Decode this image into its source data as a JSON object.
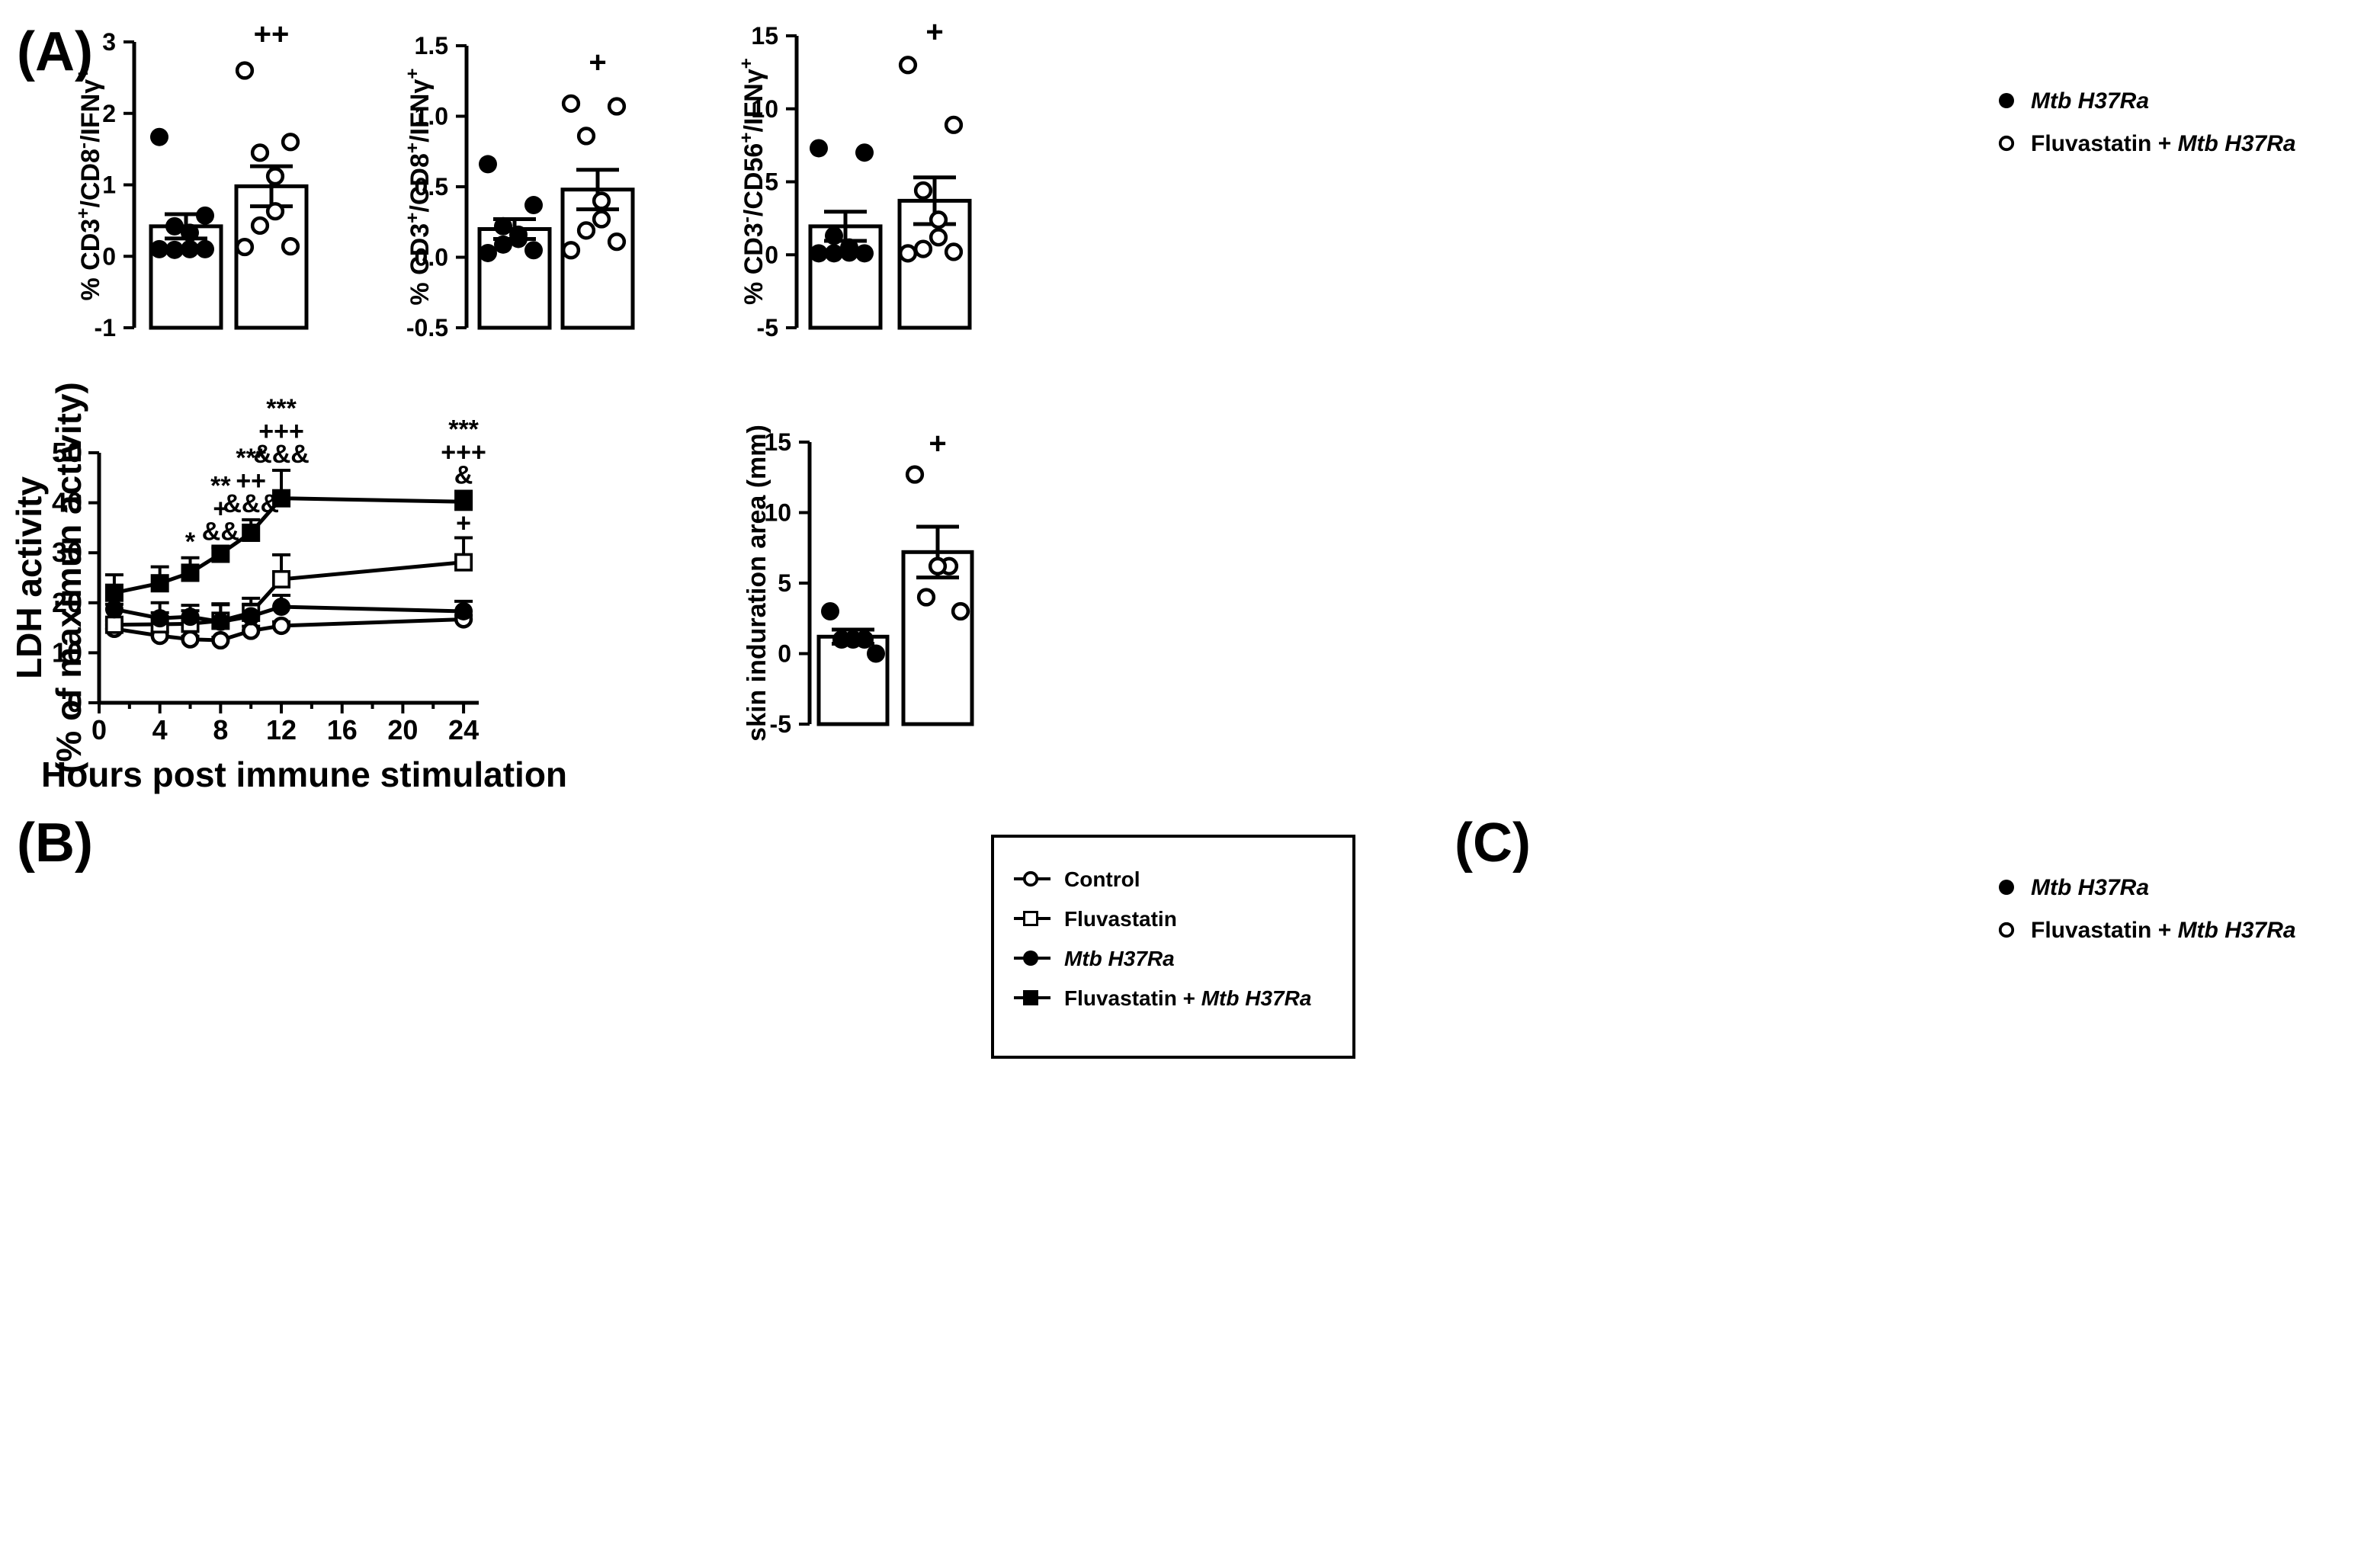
{
  "panel_labels": {
    "a": "(A)",
    "b": "(B)",
    "c": "(C)"
  },
  "legend_top": {
    "items": [
      {
        "marker": "filled-circle",
        "parts": [
          {
            "text": "Mtb H37Ra",
            "italic": true
          }
        ]
      },
      {
        "marker": "open-circle",
        "parts": [
          {
            "text": "Fluvastatin + ",
            "italic": false
          },
          {
            "text": "Mtb H37Ra",
            "italic": true
          }
        ]
      }
    ]
  },
  "legend_c": {
    "items": [
      {
        "marker": "filled-circle",
        "parts": [
          {
            "text": "Mtb H37Ra",
            "italic": true
          }
        ]
      },
      {
        "marker": "open-circle",
        "parts": [
          {
            "text": "Fluvastatin + ",
            "italic": false
          },
          {
            "text": "Mtb H37Ra",
            "italic": true
          }
        ]
      }
    ]
  },
  "legend_b": {
    "items": [
      {
        "marker": "open-circle",
        "parts": [
          {
            "text": "Control",
            "italic": false
          }
        ]
      },
      {
        "marker": "open-square",
        "parts": [
          {
            "text": "Fluvastatin",
            "italic": false
          }
        ]
      },
      {
        "marker": "filled-circle",
        "parts": [
          {
            "text": "Mtb H37Ra",
            "italic": true
          }
        ]
      },
      {
        "marker": "filled-square",
        "parts": [
          {
            "text": "Fluvastatin + ",
            "italic": false
          },
          {
            "text": "Mtb H37Ra",
            "italic": true
          }
        ]
      }
    ]
  },
  "colors": {
    "ink": "#000000",
    "background": "#ffffff"
  },
  "chart_data": [
    {
      "id": "A1",
      "type": "bar",
      "ylabel_parts": [
        {
          "t": "% CD3"
        },
        {
          "t": "+",
          "sup": true
        },
        {
          "t": "/CD8"
        },
        {
          "t": "-",
          "sup": true
        },
        {
          "t": "/IFNγ"
        },
        {
          "t": "+",
          "sup": true
        }
      ],
      "ylim": [
        -1,
        3
      ],
      "yticks": [
        -1,
        0,
        1,
        2,
        3
      ],
      "ytick_labels": [
        "-1",
        "0",
        "1",
        "2",
        "3"
      ],
      "categories": [
        "Mtb H37Ra",
        "Fluvastatin + Mtb H37Ra"
      ],
      "means": [
        0.42,
        0.98
      ],
      "sem": [
        0.17,
        0.28
      ],
      "points": [
        [
          1.67,
          0.57,
          0.42,
          0.33,
          0.1,
          0.09,
          0.1,
          0.1
        ],
        [
          2.6,
          1.6,
          1.45,
          1.12,
          0.63,
          0.43,
          0.14,
          0.13
        ]
      ],
      "significance": [
        "",
        "++"
      ]
    },
    {
      "id": "A2",
      "type": "bar",
      "ylabel_parts": [
        {
          "t": "% CD3"
        },
        {
          "t": "+",
          "sup": true
        },
        {
          "t": "/CD8"
        },
        {
          "t": "+",
          "sup": true
        },
        {
          "t": "/IFNγ"
        },
        {
          "t": "+",
          "sup": true
        }
      ],
      "ylim": [
        -0.5,
        1.5
      ],
      "yticks": [
        -0.5,
        0,
        0.5,
        1,
        1.5
      ],
      "ytick_labels": [
        "-0.5",
        "0.0",
        "0.5",
        "1.0",
        "1.5"
      ],
      "categories": [
        "Mtb H37Ra",
        "Fluvastatin + Mtb H37Ra"
      ],
      "means": [
        0.2,
        0.48
      ],
      "sem": [
        0.07,
        0.14
      ],
      "points": [
        [
          0.66,
          0.37,
          0.22,
          0.16,
          0.13,
          0.09,
          0.05,
          0.03
        ],
        [
          1.09,
          1.07,
          0.86,
          0.4,
          0.27,
          0.19,
          0.11,
          0.05
        ]
      ],
      "significance": [
        "",
        "+"
      ]
    },
    {
      "id": "A3",
      "type": "bar",
      "ylabel_parts": [
        {
          "t": "% CD3"
        },
        {
          "t": "-",
          "sup": true
        },
        {
          "t": "/CD56"
        },
        {
          "t": "+",
          "sup": true
        },
        {
          "t": "/IFNγ"
        },
        {
          "t": "+",
          "sup": true
        }
      ],
      "ylim": [
        -5,
        15
      ],
      "yticks": [
        -5,
        0,
        5,
        10,
        15
      ],
      "ytick_labels": [
        "-5",
        "0",
        "5",
        "10",
        "15"
      ],
      "categories": [
        "Mtb H37Ra",
        "Fluvastatin + Mtb H37Ra"
      ],
      "means": [
        1.95,
        3.7
      ],
      "sem": [
        1.0,
        1.6
      ],
      "points": [
        [
          7.3,
          7.0,
          1.3,
          0.5,
          0.15,
          0.1,
          0.1,
          0.1
        ],
        [
          13.0,
          8.9,
          4.4,
          2.4,
          1.2,
          0.4,
          0.2,
          0.1
        ]
      ],
      "significance": [
        "",
        "+"
      ]
    },
    {
      "id": "B",
      "type": "line",
      "xlabel": "Hours post immune stimulation",
      "ylabel_lines": [
        "LDH activity",
        "(% of maximun activity)"
      ],
      "xlim": [
        0,
        25
      ],
      "ylim": [
        0,
        50
      ],
      "xticks": [
        0,
        4,
        8,
        12,
        16,
        20,
        24
      ],
      "yticks": [
        0,
        10,
        20,
        30,
        40,
        50
      ],
      "x": [
        1,
        4,
        6,
        8,
        10,
        12,
        24
      ],
      "series": [
        {
          "name": "Control",
          "marker": "open-circle",
          "values": [
            14.8,
            13.4,
            12.7,
            12.5,
            14.4,
            15.4,
            16.7
          ],
          "err": [
            0.8,
            0.8,
            0.6,
            0.6,
            0.9,
            0.8,
            0.8
          ]
        },
        {
          "name": "Fluvastatin",
          "marker": "open-square",
          "values": [
            15.6,
            15.7,
            15.8,
            16.4,
            18.0,
            24.7,
            28.1
          ],
          "err": [
            0.8,
            4.3,
            3.7,
            3.4,
            2.9,
            4.9,
            4.9
          ]
        },
        {
          "name": "Mtb H37Ra",
          "marker": "filled-circle",
          "values": [
            18.7,
            16.9,
            17.2,
            16.2,
            17.3,
            19.2,
            18.3
          ],
          "err": [
            1.0,
            1.1,
            1.2,
            3.4,
            2.4,
            2.3,
            2.0
          ]
        },
        {
          "name": "Fluvastatin + Mtb H37Ra",
          "marker": "filled-square",
          "values": [
            22.0,
            23.9,
            26.0,
            29.8,
            34.0,
            40.9,
            40.2
          ],
          "err": [
            3.6,
            3.3,
            3.0,
            1.2,
            2.6,
            5.6,
            2.1
          ]
        }
      ],
      "annotations": [
        {
          "x": 6,
          "lines": [
            "*"
          ]
        },
        {
          "x": 8,
          "lines": [
            "**",
            "+",
            "&&"
          ]
        },
        {
          "x": 10,
          "lines": [
            "***",
            "++",
            "&&&"
          ]
        },
        {
          "x": 12,
          "lines": [
            "***",
            "+++",
            "&&&"
          ]
        },
        {
          "x": 24,
          "lines": [
            "***",
            "+++",
            "&"
          ]
        },
        {
          "x": 24,
          "lines": [
            "*",
            "+"
          ],
          "near": "Fluvastatin"
        }
      ]
    },
    {
      "id": "C",
      "type": "bar",
      "ylabel_parts": [
        {
          "t": "skin induration area (mm)"
        }
      ],
      "ylim": [
        -5,
        15
      ],
      "yticks": [
        -5,
        0,
        5,
        10,
        15
      ],
      "ytick_labels": [
        "-5",
        "0",
        "5",
        "10",
        "15"
      ],
      "categories": [
        "Mtb H37Ra",
        "Fluvastatin + Mtb H37Ra"
      ],
      "means": [
        1.2,
        7.2
      ],
      "sem": [
        0.5,
        1.8
      ],
      "points": [
        [
          3.0,
          1.0,
          1.0,
          1.0,
          0.0
        ],
        [
          12.7,
          6.2,
          6.2,
          4.0,
          3.0
        ]
      ],
      "significance": [
        "",
        "+"
      ]
    }
  ]
}
